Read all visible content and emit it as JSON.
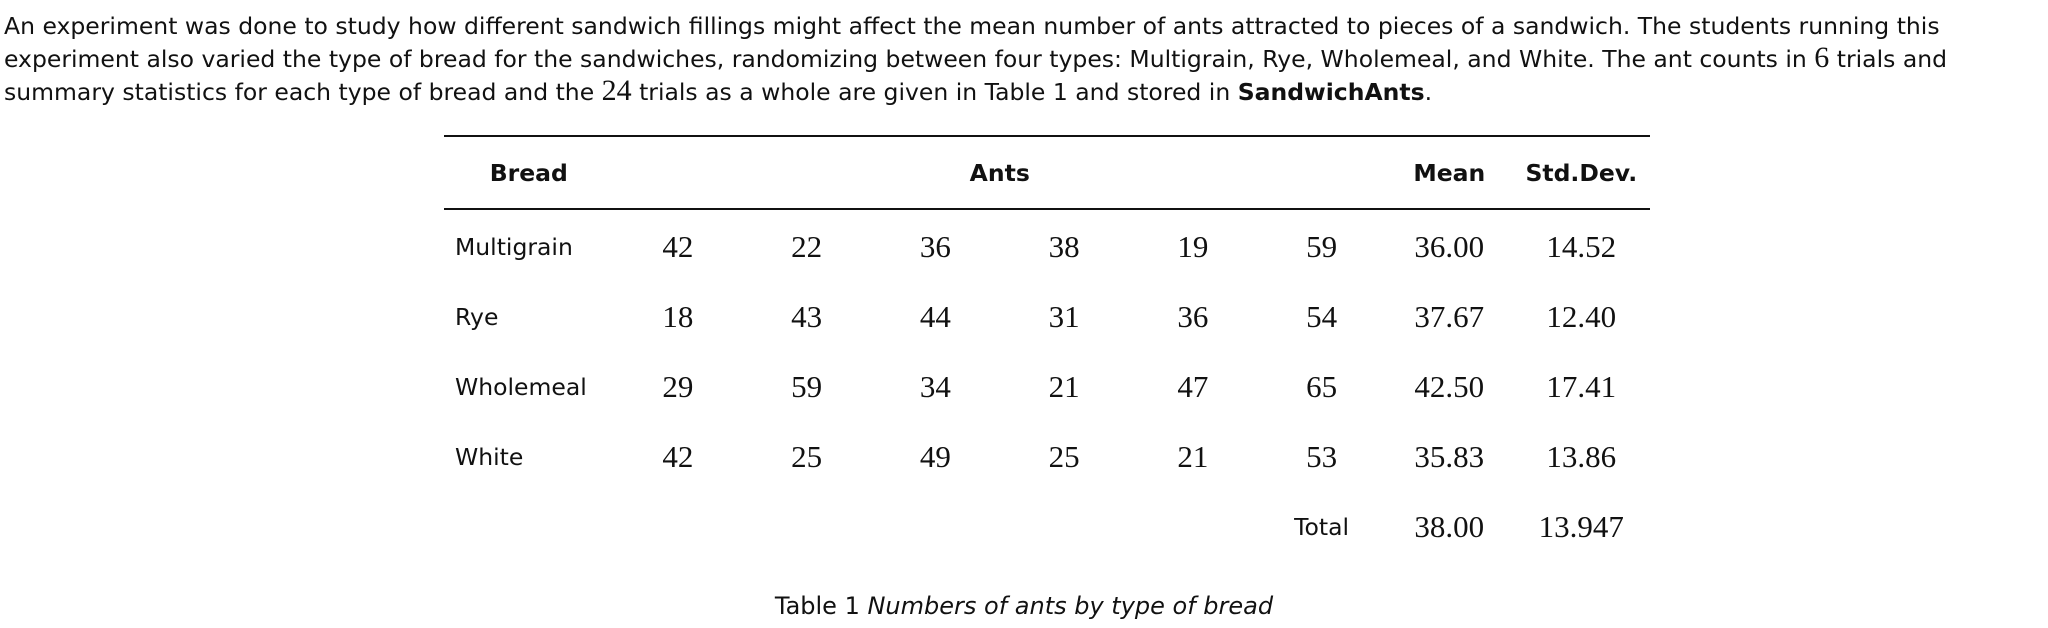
{
  "intro": {
    "line1": "An experiment was done to study how different sandwich fillings might affect the mean number of ants attracted to pieces of a sandwich. The students running this",
    "line2_a": "experiment also varied the type of bread for the sandwiches, randomizing between four types: Multigrain, Rye, Wholemeal, and White. The ant counts in ",
    "trials_per_bread": "6",
    "line2_b": " trials and",
    "line3_a": "summary statistics for each type of bread and the ",
    "total_trials": "24",
    "line3_b": " trials as a whole are given in Table 1 and stored in ",
    "dataset_name": "SandwichAnts",
    "line3_c": "."
  },
  "table": {
    "headers": {
      "bread": "Bread",
      "ants": "Ants",
      "mean": "Mean",
      "sd": "Std.Dev."
    },
    "rows": [
      {
        "bread": "Multigrain",
        "ants": [
          "42",
          "22",
          "36",
          "38",
          "19",
          "59"
        ],
        "mean": "36.00",
        "sd": "14.52"
      },
      {
        "bread": "Rye",
        "ants": [
          "18",
          "43",
          "44",
          "31",
          "36",
          "54"
        ],
        "mean": "37.67",
        "sd": "12.40"
      },
      {
        "bread": "Wholemeal",
        "ants": [
          "29",
          "59",
          "34",
          "21",
          "47",
          "65"
        ],
        "mean": "42.50",
        "sd": "17.41"
      },
      {
        "bread": "White",
        "ants": [
          "42",
          "25",
          "49",
          "25",
          "21",
          "53"
        ],
        "mean": "35.83",
        "sd": "13.86"
      }
    ],
    "total": {
      "label": "Total",
      "mean": "38.00",
      "sd": "13.947"
    }
  },
  "caption": {
    "prefix": "Table 1 ",
    "title": "Numbers of ants by type of bread"
  }
}
